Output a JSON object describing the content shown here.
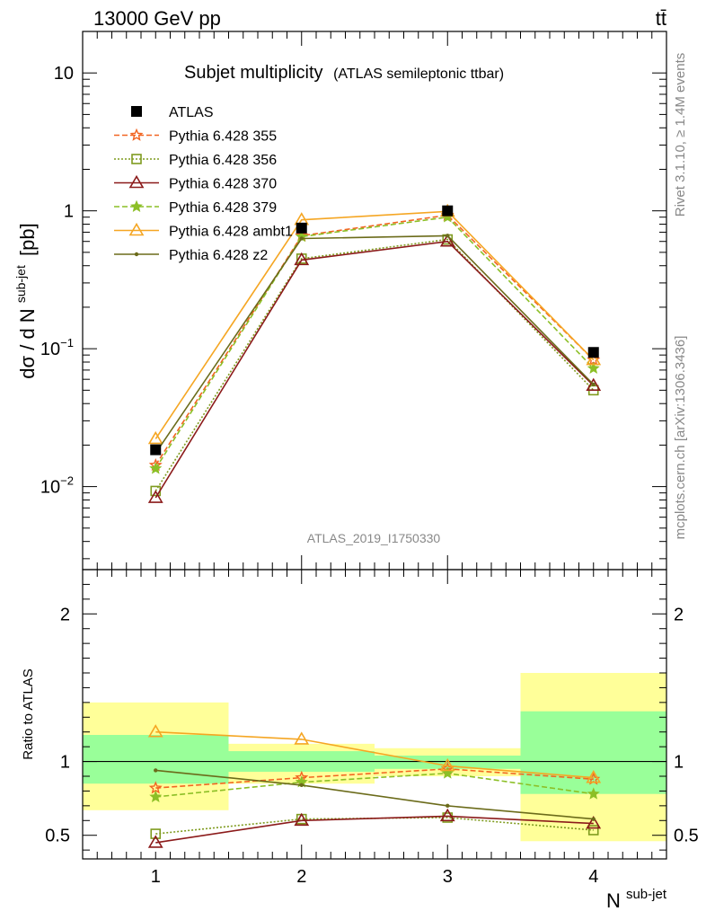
{
  "header": {
    "energy": "13000 GeV pp",
    "process": "tt̄",
    "rivet": "Rivet 3.1.10, ≥ 1.4M events",
    "mcplots": "mcplots.cern.ch [arXiv:1306.3436]",
    "analysis": "ATLAS_2019_I1750330"
  },
  "chart_data": [
    {
      "type": "line",
      "title": "Subjet multiplicity",
      "subtitle": "(ATLAS semileptonic ttbar)",
      "ylabel_main": "dσ / d N",
      "ylabel_sup": "sub-jet",
      "ylabel_unit": "[pb]",
      "xlabel": "N",
      "xlabel_sup": "sub-jet",
      "ylog": true,
      "ylim": [
        0.0025,
        20
      ],
      "xlim": [
        0.5,
        4.5
      ],
      "x": [
        1,
        2,
        3,
        4
      ],
      "xticks": [
        "1",
        "2",
        "3",
        "4"
      ],
      "yticks": [
        {
          "v": 10,
          "base": "10",
          "exp": ""
        },
        {
          "v": 1,
          "base": "1",
          "exp": ""
        },
        {
          "v": 0.1,
          "base": "10",
          "exp": "−1"
        },
        {
          "v": 0.01,
          "base": "10",
          "exp": "−2"
        }
      ],
      "data": {
        "name": "ATLAS",
        "color": "#000000",
        "values": [
          0.0185,
          0.75,
          1.0,
          0.094
        ]
      },
      "series": [
        {
          "name": "Pythia 6.428 355",
          "color": "#f26522",
          "dash": "6,3",
          "marker": "star-open",
          "values": [
            0.0143,
            0.66,
            0.93,
            0.083
          ]
        },
        {
          "name": "Pythia 6.428 356",
          "color": "#7f9b1f",
          "dash": "2,2",
          "marker": "square-open",
          "values": [
            0.0093,
            0.45,
            0.62,
            0.05
          ]
        },
        {
          "name": "Pythia 6.428 370",
          "color": "#8b1a1a",
          "dash": "",
          "marker": "triangle-open",
          "values": [
            0.0083,
            0.44,
            0.6,
            0.054
          ]
        },
        {
          "name": "Pythia 6.428 379",
          "color": "#8cbf26",
          "dash": "6,3",
          "marker": "star-filled",
          "values": [
            0.0135,
            0.65,
            0.9,
            0.072
          ]
        },
        {
          "name": "Pythia 6.428 ambt1",
          "color": "#f5a623",
          "dash": "",
          "marker": "triangle-open",
          "values": [
            0.0222,
            0.86,
            0.99,
            0.083
          ]
        },
        {
          "name": "Pythia 6.428 z2",
          "color": "#6b6b1a",
          "dash": "",
          "marker": "dot",
          "values": [
            0.0175,
            0.63,
            0.66,
            0.055
          ]
        }
      ]
    },
    {
      "type": "line",
      "ylabel": "Ratio to ATLAS",
      "ylim": [
        0.34,
        2.3
      ],
      "yticks": [
        "0.5",
        "1",
        "2"
      ],
      "bands": [
        {
          "x0": 0.5,
          "x1": 1.5,
          "yellow": [
            0.67,
            1.4
          ],
          "green": [
            0.85,
            1.18
          ]
        },
        {
          "x0": 1.5,
          "x1": 2.5,
          "yellow": [
            0.85,
            1.12
          ],
          "green": [
            0.93,
            1.07
          ]
        },
        {
          "x0": 2.5,
          "x1": 3.5,
          "yellow": [
            0.9,
            1.09
          ],
          "green": [
            0.95,
            1.04
          ]
        },
        {
          "x0": 3.5,
          "x1": 4.5,
          "yellow": [
            0.46,
            1.6
          ],
          "green": [
            0.78,
            1.34
          ]
        }
      ],
      "series": [
        {
          "name": "Pythia 6.428 355",
          "values": [
            0.82,
            0.89,
            0.95,
            0.88
          ]
        },
        {
          "name": "Pythia 6.428 356",
          "values": [
            0.51,
            0.61,
            0.62,
            0.535
          ]
        },
        {
          "name": "Pythia 6.428 370",
          "values": [
            0.45,
            0.6,
            0.63,
            0.58
          ]
        },
        {
          "name": "Pythia 6.428 379",
          "values": [
            0.76,
            0.86,
            0.92,
            0.78
          ]
        },
        {
          "name": "Pythia 6.428 ambt1",
          "values": [
            1.2,
            1.15,
            0.97,
            0.89
          ]
        },
        {
          "name": "Pythia 6.428 z2",
          "values": [
            0.94,
            0.84,
            0.7,
            0.61
          ]
        }
      ]
    }
  ]
}
